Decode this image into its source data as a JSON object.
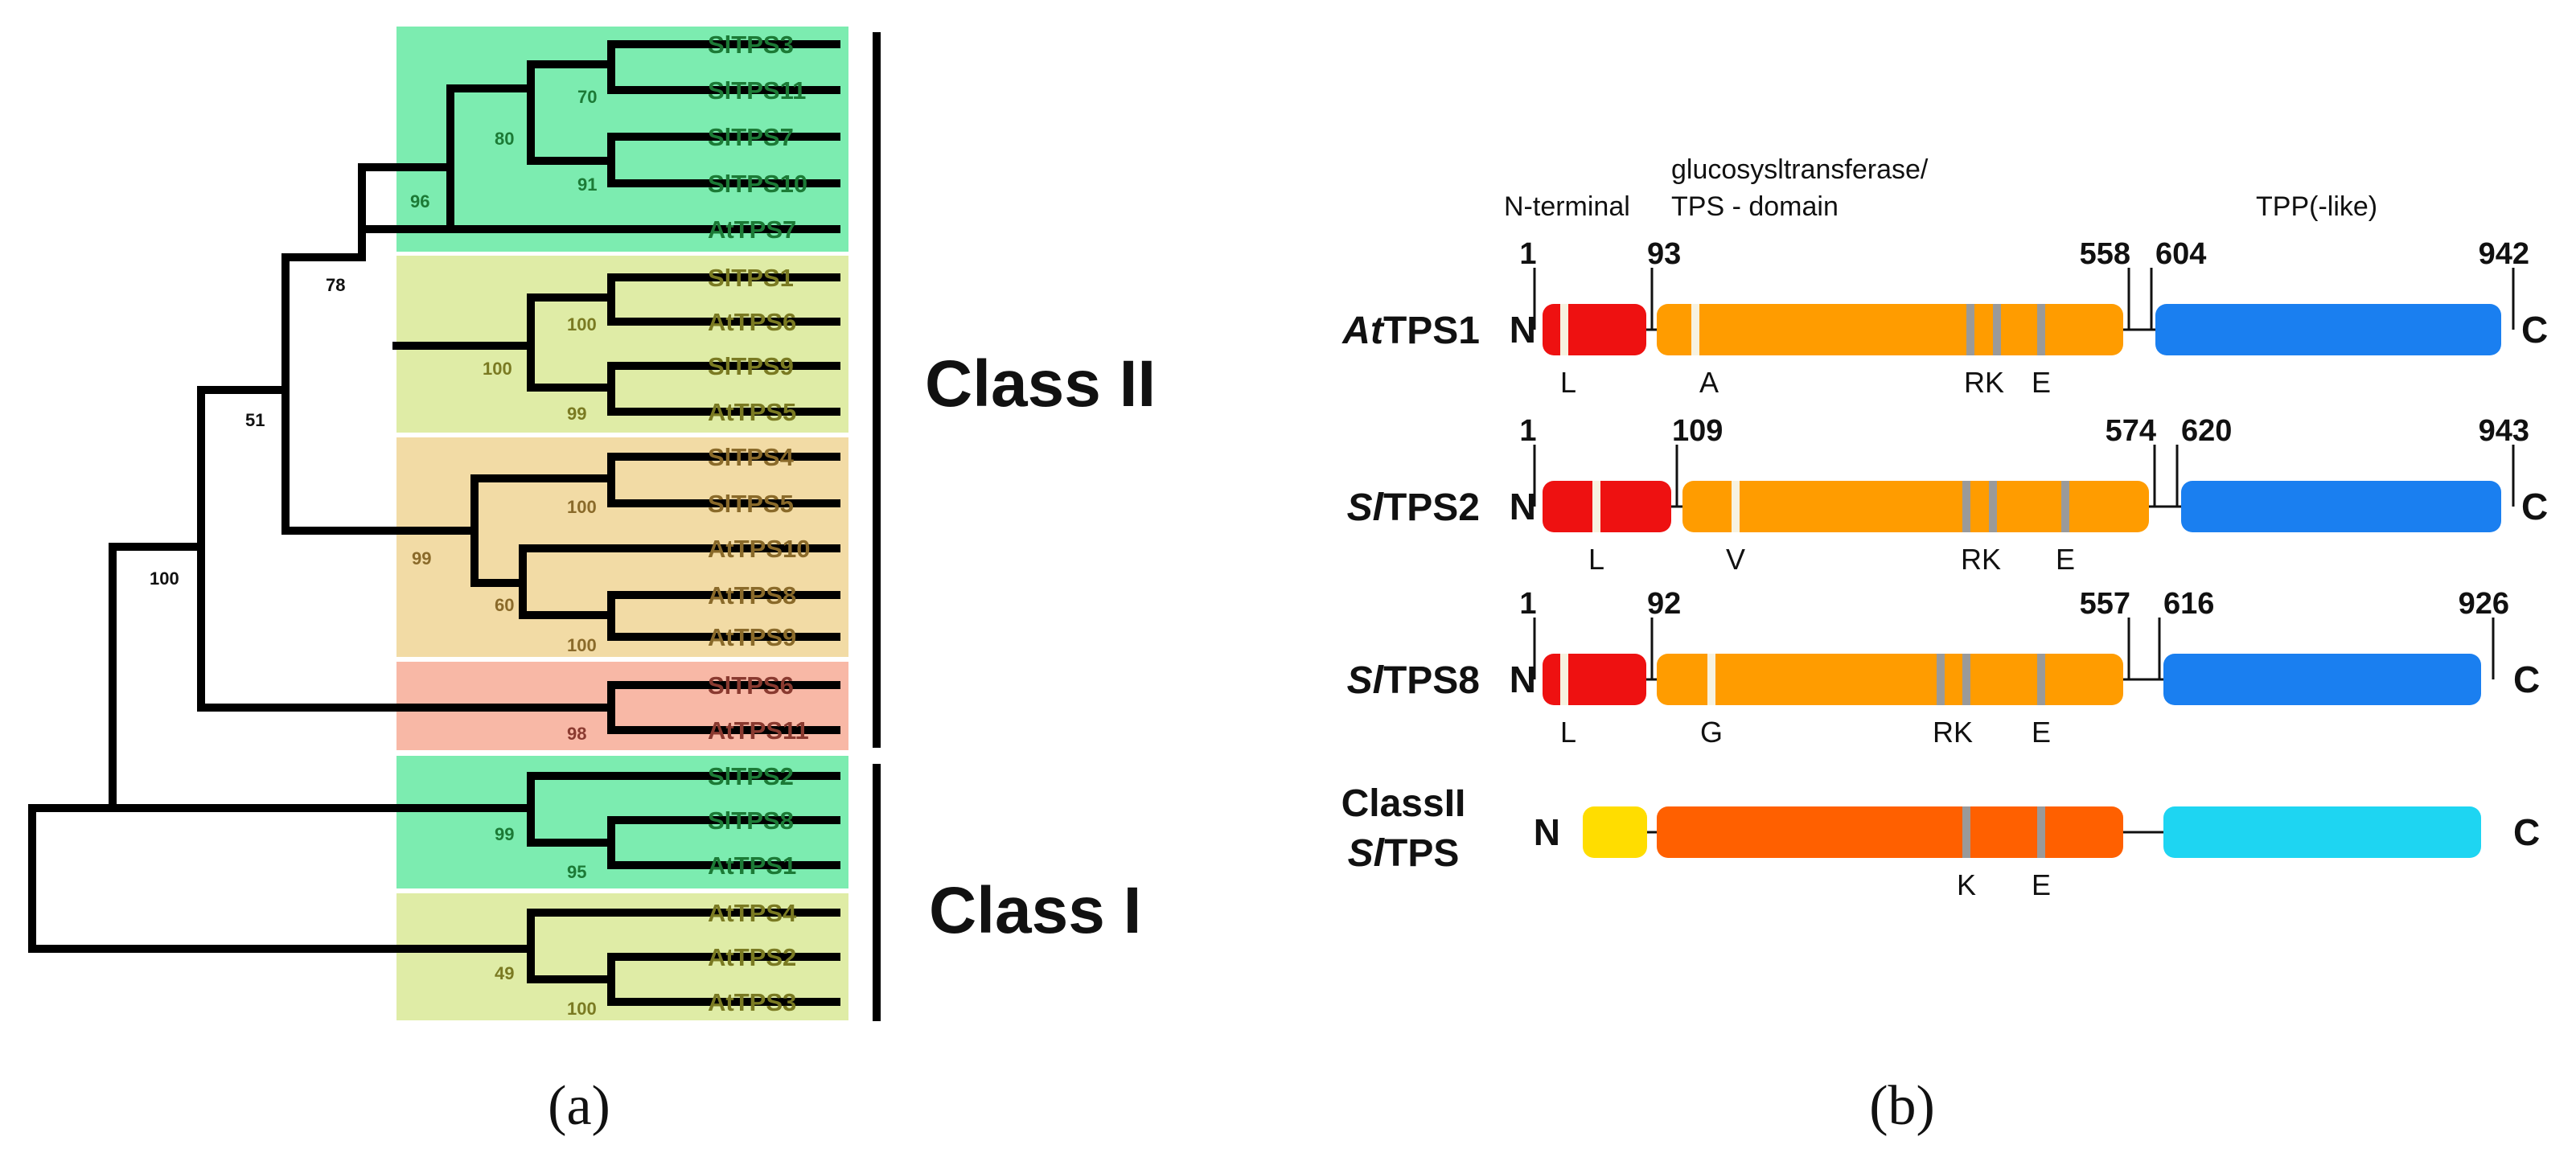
{
  "panel_a": {
    "label": "(a)",
    "class_ii": "Class II",
    "class_i": "Class I",
    "group_colors": [
      "#7cecb0",
      "#dfeca6",
      "#f2dba5",
      "#f8b8a6",
      "#7cecb0",
      "#dfeca6"
    ],
    "leaves": [
      {
        "label": "SlTPS3",
        "color": "#1c7a36"
      },
      {
        "label": "SlTPS11",
        "color": "#1c7a36"
      },
      {
        "label": "SlTPS7",
        "color": "#1c7a36"
      },
      {
        "label": "SlTPS10",
        "color": "#1c7a36"
      },
      {
        "label": "AtTPS7",
        "color": "#1c7a36"
      },
      {
        "label": "SlTPS1",
        "color": "#7a7a22"
      },
      {
        "label": "AtTPS6",
        "color": "#7a7a22"
      },
      {
        "label": "SlTPS9",
        "color": "#7a7a22"
      },
      {
        "label": "AtTPS5",
        "color": "#7a7a22"
      },
      {
        "label": "SlTPS4",
        "color": "#8a6a2a"
      },
      {
        "label": "SlTPS5",
        "color": "#8a6a2a"
      },
      {
        "label": "AtTPS10",
        "color": "#8a6a2a"
      },
      {
        "label": "AtTPS8",
        "color": "#8a6a2a"
      },
      {
        "label": "AtTPS9",
        "color": "#8a6a2a"
      },
      {
        "label": "SlTPS6",
        "color": "#8a3a30"
      },
      {
        "label": "AtTPS11",
        "color": "#8a3a30"
      },
      {
        "label": "SlTPS2",
        "color": "#1c7a36"
      },
      {
        "label": "SlTPS8",
        "color": "#1c7a36"
      },
      {
        "label": "AtTPS1",
        "color": "#1c7a36"
      },
      {
        "label": "AtTPS4",
        "color": "#7a7a22"
      },
      {
        "label": "AtTPS2",
        "color": "#7a7a22"
      },
      {
        "label": "AtTPS3",
        "color": "#7a7a22"
      }
    ],
    "bootstraps": [
      {
        "value": "70",
        "color": "#1c7a36"
      },
      {
        "value": "80",
        "color": "#1c7a36"
      },
      {
        "value": "91",
        "color": "#1c7a36"
      },
      {
        "value": "96",
        "color": "#1c7a36"
      },
      {
        "value": "78",
        "color": "#111111"
      },
      {
        "value": "100",
        "color": "#7a7a22"
      },
      {
        "value": "100",
        "color": "#7a7a22"
      },
      {
        "value": "99",
        "color": "#7a7a22"
      },
      {
        "value": "51",
        "color": "#111111"
      },
      {
        "value": "100",
        "color": "#8a6a2a"
      },
      {
        "value": "99",
        "color": "#8a6a2a"
      },
      {
        "value": "60",
        "color": "#8a6a2a"
      },
      {
        "value": "100",
        "color": "#8a6a2a"
      },
      {
        "value": "100",
        "color": "#111111"
      },
      {
        "value": "98",
        "color": "#8a3a30"
      },
      {
        "value": "99",
        "color": "#1c7a36"
      },
      {
        "value": "95",
        "color": "#1c7a36"
      },
      {
        "value": "49",
        "color": "#7a7a22"
      },
      {
        "value": "100",
        "color": "#7a7a22"
      }
    ]
  },
  "panel_b": {
    "label": "(b)",
    "headers": {
      "n_terminal": "N-terminal",
      "glucosyl_line1": "glucosysltransferase/",
      "glucosyl_line2": "TPS - domain",
      "tpp": "TPP(-like)"
    },
    "colors": {
      "n_domain": "#ee1111",
      "tps_domain": "#ff9c00",
      "tpp_domain": "#1a7ff0",
      "classii_n": "#ffdd00",
      "classii_tps": "#ff6000",
      "classii_tpp": "#1ed5f2",
      "marker_white": "#f7f2e0",
      "marker_gray": "#9a9a9a"
    },
    "proteins": [
      {
        "name_prefix": "At",
        "name_suffix": "TPS1",
        "n": "N",
        "c": "C",
        "positions": [
          "1",
          "93",
          "558",
          "604",
          "942"
        ],
        "residues": [
          "L",
          "A",
          "RK",
          "E"
        ]
      },
      {
        "name_prefix": "Sl",
        "name_suffix": "TPS2",
        "n": "N",
        "c": "C",
        "positions": [
          "1",
          "109",
          "574",
          "620",
          "943"
        ],
        "residues": [
          "L",
          "V",
          "RK",
          "E"
        ]
      },
      {
        "name_prefix": "Sl",
        "name_suffix": "TPS8",
        "n": "N",
        "c": "C",
        "positions": [
          "1",
          "92",
          "557",
          "616",
          "926"
        ],
        "residues": [
          "L",
          "G",
          "RK",
          "E"
        ]
      },
      {
        "name_line1": "ClassII",
        "name_prefix": "Sl",
        "name_suffix": "TPS",
        "n": "N",
        "c": "C",
        "residues": [
          "K",
          "E"
        ]
      }
    ]
  }
}
